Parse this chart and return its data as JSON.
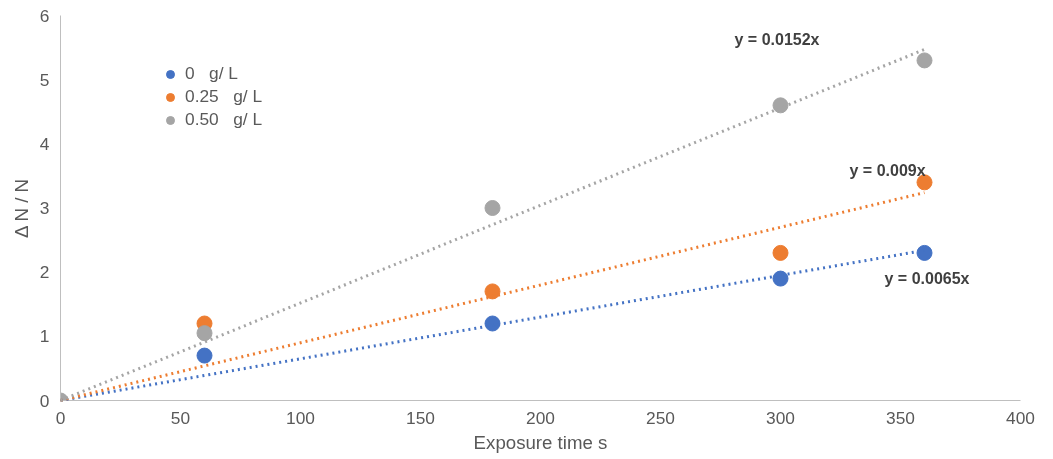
{
  "chart_data": {
    "type": "scatter",
    "xlabel": "Exposure time s",
    "ylabel": "Δ N / N",
    "x": [
      0,
      60,
      180,
      300,
      360
    ],
    "xlim": [
      0,
      400
    ],
    "xticks": [
      0,
      50,
      100,
      150,
      200,
      250,
      300,
      350,
      400
    ],
    "ylim": [
      0,
      6
    ],
    "yticks": [
      0,
      1,
      2,
      3,
      4,
      5,
      6
    ],
    "grid": false,
    "legend": "top left",
    "series": [
      {
        "name": "0   g/ L",
        "color": "#4472c4",
        "marker": "circle",
        "values": [
          null,
          0.7,
          1.2,
          1.9,
          2.3
        ]
      },
      {
        "name": "0.25   g/ L",
        "color": "#ed7d31",
        "marker": "circle",
        "values": [
          null,
          1.2,
          1.7,
          2.3,
          3.4
        ]
      },
      {
        "name": "0.50   g/ L",
        "color": "#a5a5a5",
        "marker": "circle",
        "values": [
          0,
          1.05,
          3.0,
          4.6,
          5.3
        ]
      },
      {
        "type": "line",
        "line_style": "dotted",
        "marker": "none",
        "color": "#4472c4",
        "values": [
          0,
          0.39,
          1.17,
          1.95,
          2.34
        ]
      },
      {
        "type": "line",
        "line_style": "dotted",
        "marker": "none",
        "color": "#ed7d31",
        "values": [
          0,
          0.54,
          1.62,
          2.7,
          3.24
        ]
      },
      {
        "type": "line",
        "line_style": "dotted",
        "marker": "none",
        "color": "#a5a5a5",
        "values": [
          0,
          0.91,
          2.74,
          4.56,
          5.47
        ]
      }
    ],
    "annotations": [
      "y = 0.0065x",
      "y = 0.009x",
      "y = 0.0152x"
    ]
  }
}
